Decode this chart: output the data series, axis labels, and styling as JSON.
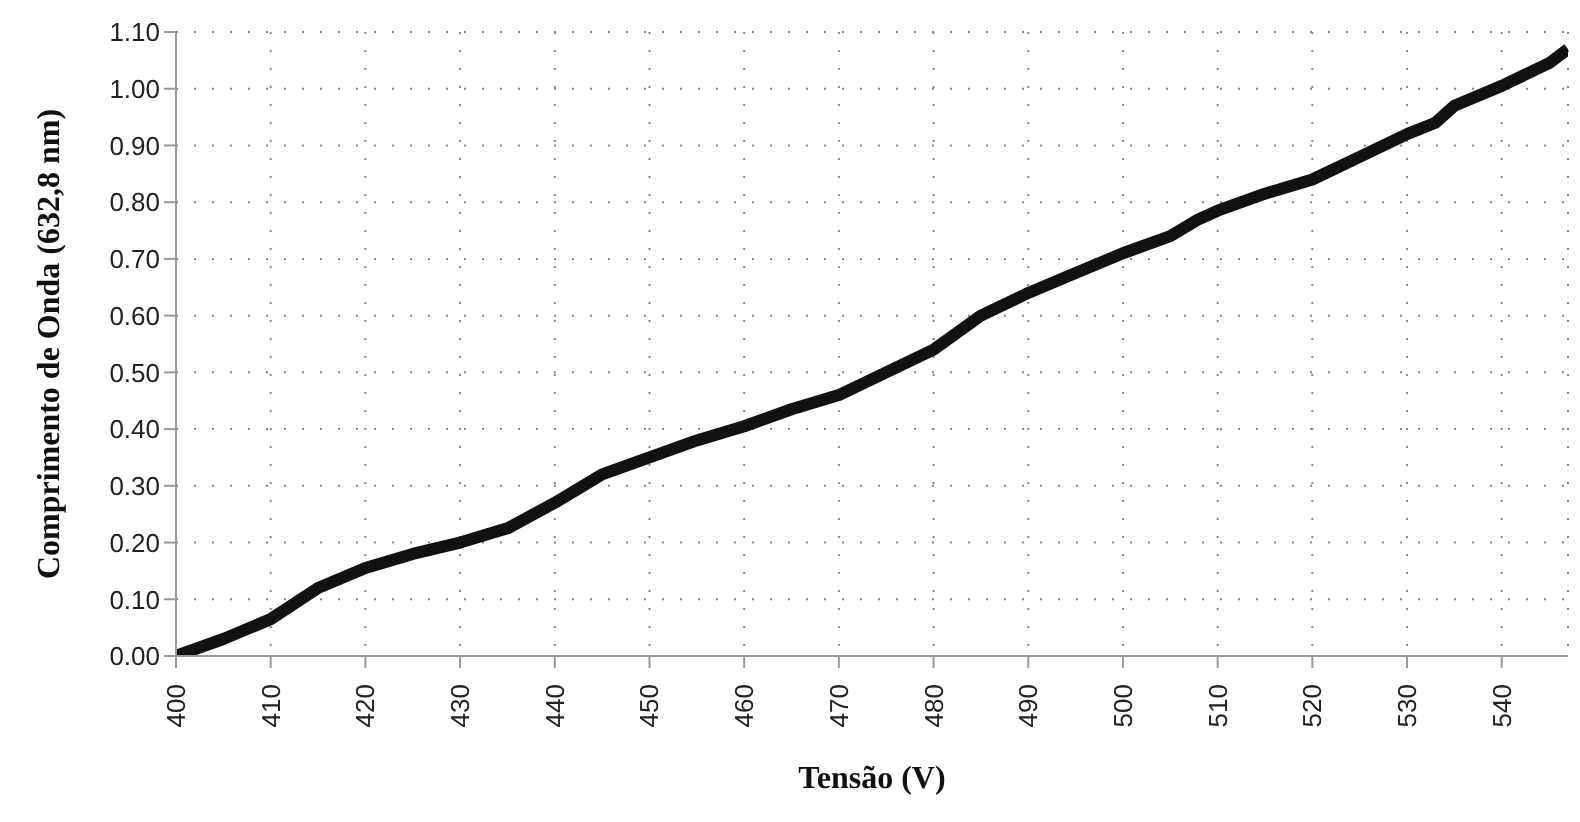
{
  "chart_data": {
    "type": "line",
    "xlabel": "Tensão  (V)",
    "ylabel": "Comprimento de Onda (632,8 nm)",
    "x": [
      400,
      405,
      410,
      415,
      420,
      425,
      430,
      435,
      440,
      445,
      450,
      455,
      460,
      465,
      470,
      475,
      480,
      485,
      490,
      495,
      500,
      505,
      508,
      510,
      515,
      520,
      525,
      530,
      533,
      535,
      540,
      545,
      547
    ],
    "series": [
      {
        "color": "#111111",
        "values": [
          0.0,
          0.03,
          0.065,
          0.12,
          0.155,
          0.18,
          0.2,
          0.225,
          0.27,
          0.32,
          0.35,
          0.38,
          0.405,
          0.435,
          0.46,
          0.5,
          0.54,
          0.6,
          0.64,
          0.675,
          0.71,
          0.74,
          0.77,
          0.785,
          0.815,
          0.84,
          0.88,
          0.92,
          0.94,
          0.97,
          1.005,
          1.045,
          1.07
        ]
      }
    ],
    "xlim": [
      400,
      547
    ],
    "xticks": [
      400,
      410,
      420,
      430,
      440,
      450,
      460,
      470,
      480,
      490,
      500,
      510,
      520,
      530,
      540
    ],
    "ylim": [
      0,
      1.1
    ],
    "yticks": [
      {
        "value": 0,
        "label": "0.00"
      },
      {
        "value": 0.1,
        "label": "0.10"
      },
      {
        "value": 0.2,
        "label": "0.20"
      },
      {
        "value": 0.3,
        "label": "0.30"
      },
      {
        "value": 0.4,
        "label": "0.40"
      },
      {
        "value": 0.5,
        "label": "0.50"
      },
      {
        "value": 0.6,
        "label": "0.60"
      },
      {
        "value": 0.7,
        "label": "0.70"
      },
      {
        "value": 0.8,
        "label": "0.80"
      },
      {
        "value": 0.9,
        "label": "0.90"
      },
      {
        "value": 1.0,
        "label": "1.00"
      },
      {
        "value": 1.1,
        "label": "1.10"
      }
    ],
    "grid": true,
    "legend": false
  }
}
